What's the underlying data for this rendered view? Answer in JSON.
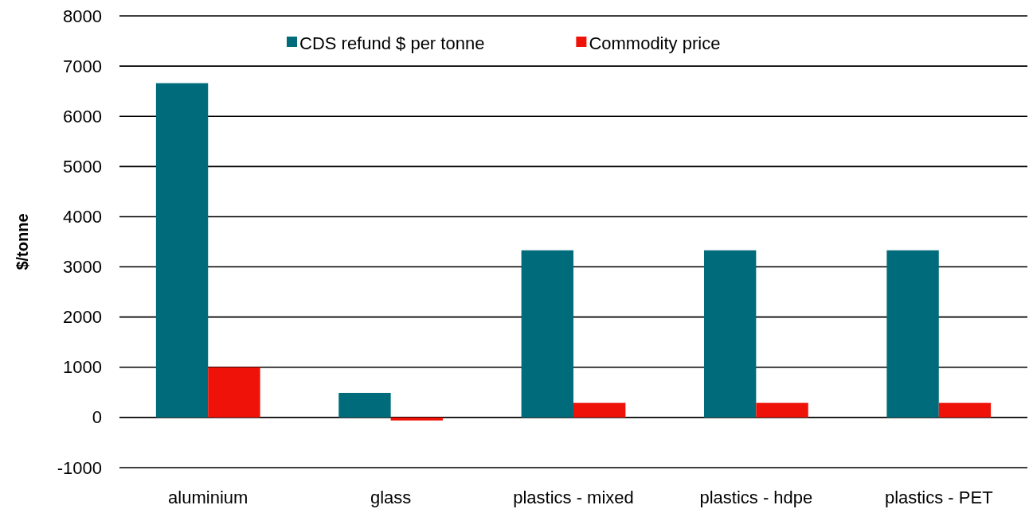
{
  "chart_data": {
    "type": "bar",
    "ylabel": "$/tonne",
    "categories": [
      "aluminium",
      "glass",
      "plastics - mixed",
      "plastics - hdpe",
      "plastics - PET"
    ],
    "series": [
      {
        "name": "CDS refund $ per tonne",
        "color": "#006b7a",
        "values": [
          6660,
          490,
          3330,
          3330,
          3330
        ]
      },
      {
        "name": "Commodity price",
        "color": "#ee1208",
        "values": [
          1000,
          -60,
          290,
          290,
          290
        ]
      }
    ],
    "ylim": [
      -1000,
      8000
    ],
    "yticks": [
      -1000,
      0,
      1000,
      2000,
      3000,
      4000,
      5000,
      6000,
      7000,
      8000
    ],
    "grid": "y",
    "legend": "top"
  }
}
